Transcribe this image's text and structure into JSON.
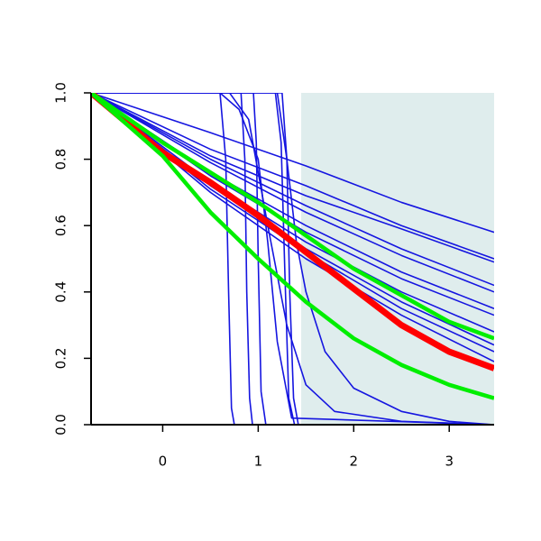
{
  "chart_data": {
    "type": "line",
    "xlim": [
      -0.75,
      3.47
    ],
    "ylim": [
      0,
      1
    ],
    "xticks": [
      0,
      1,
      2,
      3
    ],
    "yticks": [
      {
        "value": 0,
        "label": "0.0"
      },
      0.2,
      0.4,
      0.6,
      0.8,
      {
        "value": 1,
        "label": "1.0"
      }
    ],
    "shaded_region": {
      "xmin": 1.45,
      "xmax": 3.47,
      "color": "#dfeded"
    },
    "series": [
      {
        "color": "#1515e0",
        "line_width": 1.6,
        "x": [
          -0.75,
          0.5,
          1.5,
          2.5,
          3.47
        ],
        "values": [
          1,
          0.88,
          0.78,
          0.67,
          0.58
        ]
      },
      {
        "color": "#1515e0",
        "line_width": 1.6,
        "x": [
          -0.75,
          0.5,
          1.5,
          2.5,
          3.47
        ],
        "values": [
          1,
          0.83,
          0.72,
          0.6,
          0.5
        ]
      },
      {
        "color": "#1515e0",
        "line_width": 1.6,
        "x": [
          -0.75,
          0.5,
          1.5,
          2.5,
          3.47
        ],
        "values": [
          1,
          0.81,
          0.69,
          0.59,
          0.49
        ]
      },
      {
        "color": "#1515e0",
        "line_width": 1.6,
        "x": [
          -0.75,
          0.5,
          1.5,
          2.5,
          3.47
        ],
        "values": [
          1,
          0.8,
          0.66,
          0.53,
          0.42
        ]
      },
      {
        "color": "#1515e0",
        "line_width": 1.6,
        "x": [
          -0.75,
          0.5,
          1.5,
          2.5,
          3.47
        ],
        "values": [
          1,
          0.79,
          0.64,
          0.51,
          0.4
        ]
      },
      {
        "color": "#1515e0",
        "line_width": 1.6,
        "x": [
          -0.75,
          0.5,
          1.5,
          2.5,
          3.47
        ],
        "values": [
          1,
          0.76,
          0.6,
          0.46,
          0.35
        ]
      },
      {
        "color": "#1515e0",
        "line_width": 1.6,
        "x": [
          -0.75,
          0.5,
          1.5,
          2.5,
          3.47
        ],
        "values": [
          1,
          0.75,
          0.58,
          0.44,
          0.33
        ]
      },
      {
        "color": "#1515e0",
        "line_width": 1.6,
        "x": [
          -0.75,
          0.5,
          1.5,
          2.5,
          3.47
        ],
        "values": [
          1,
          0.73,
          0.55,
          0.4,
          0.28
        ]
      },
      {
        "color": "#1515e0",
        "line_width": 1.6,
        "x": [
          -0.75,
          0.5,
          1.5,
          2.5,
          3.47
        ],
        "values": [
          1,
          0.72,
          0.53,
          0.37,
          0.24
        ]
      },
      {
        "color": "#1515e0",
        "line_width": 1.6,
        "x": [
          -0.75,
          0.5,
          1.5,
          2.5,
          3.47
        ],
        "values": [
          1,
          0.71,
          0.52,
          0.35,
          0.22
        ]
      },
      {
        "color": "#1515e0",
        "line_width": 1.6,
        "x": [
          -0.75,
          0.5,
          1.5,
          2.5,
          3.47
        ],
        "values": [
          1,
          0.7,
          0.5,
          0.33,
          0.19
        ]
      },
      {
        "color": "#1515e0",
        "line_width": 1.6,
        "x": [
          -0.75,
          0.6,
          0.66,
          0.69,
          0.72,
          0.75,
          3.47
        ],
        "values": [
          1,
          1,
          0.8,
          0.4,
          0.05,
          0,
          0
        ]
      },
      {
        "color": "#1515e0",
        "line_width": 1.6,
        "x": [
          -0.75,
          0.82,
          0.86,
          0.88,
          0.91,
          0.94,
          3.47
        ],
        "values": [
          1,
          1,
          0.8,
          0.4,
          0.08,
          0,
          0
        ]
      },
      {
        "color": "#1515e0",
        "line_width": 1.6,
        "x": [
          -0.75,
          0.95,
          0.98,
          1.0,
          1.03,
          1.08,
          3.47
        ],
        "values": [
          1,
          1,
          0.85,
          0.5,
          0.1,
          0,
          0
        ]
      },
      {
        "color": "#1515e0",
        "line_width": 1.6,
        "x": [
          -0.75,
          0.6,
          0.8,
          1.0,
          1.1,
          1.2,
          1.35,
          3.47
        ],
        "values": [
          1,
          1,
          0.95,
          0.8,
          0.55,
          0.25,
          0.02,
          0
        ]
      },
      {
        "color": "#1515e0",
        "line_width": 1.6,
        "x": [
          -0.75,
          1.18,
          1.24,
          1.28,
          1.32,
          1.38,
          3.47
        ],
        "values": [
          1,
          1,
          0.85,
          0.45,
          0.08,
          0,
          0
        ]
      },
      {
        "color": "#1515e0",
        "line_width": 1.6,
        "x": [
          -0.75,
          1.25,
          1.3,
          1.33,
          1.37,
          1.42,
          3.47
        ],
        "values": [
          1,
          1,
          0.8,
          0.4,
          0.08,
          0,
          0
        ]
      },
      {
        "color": "#1515e0",
        "line_width": 1.6,
        "x": [
          -0.75,
          1.2,
          1.3,
          1.4,
          1.5,
          1.7,
          2.0,
          2.5,
          3.0,
          3.47
        ],
        "values": [
          1,
          1,
          0.8,
          0.55,
          0.4,
          0.22,
          0.11,
          0.04,
          0.01,
          0
        ]
      },
      {
        "color": "#1515e0",
        "line_width": 1.6,
        "x": [
          -0.75,
          0.7,
          0.9,
          1.1,
          1.3,
          1.5,
          1.8,
          2.5,
          3.47
        ],
        "values": [
          1,
          1,
          0.92,
          0.6,
          0.3,
          0.12,
          0.04,
          0.01,
          0
        ]
      },
      {
        "color": "#ff0000",
        "line_width": 7,
        "x": [
          -0.75,
          0,
          0.5,
          1,
          1.5,
          2,
          2.5,
          3,
          3.47
        ],
        "values": [
          1,
          0.82,
          0.73,
          0.63,
          0.52,
          0.41,
          0.3,
          0.22,
          0.17
        ]
      },
      {
        "color": "#00ee00",
        "line_width": 4.5,
        "x": [
          -0.75,
          0,
          0.5,
          1,
          1.5,
          2,
          2.5,
          3,
          3.47
        ],
        "values": [
          1,
          0.85,
          0.76,
          0.67,
          0.57,
          0.47,
          0.39,
          0.31,
          0.26
        ]
      },
      {
        "color": "#00ee00",
        "line_width": 4.5,
        "x": [
          -0.75,
          0,
          0.5,
          1,
          1.5,
          2,
          2.5,
          3,
          3.47
        ],
        "values": [
          1,
          0.81,
          0.64,
          0.5,
          0.37,
          0.26,
          0.18,
          0.12,
          0.08
        ]
      }
    ]
  }
}
